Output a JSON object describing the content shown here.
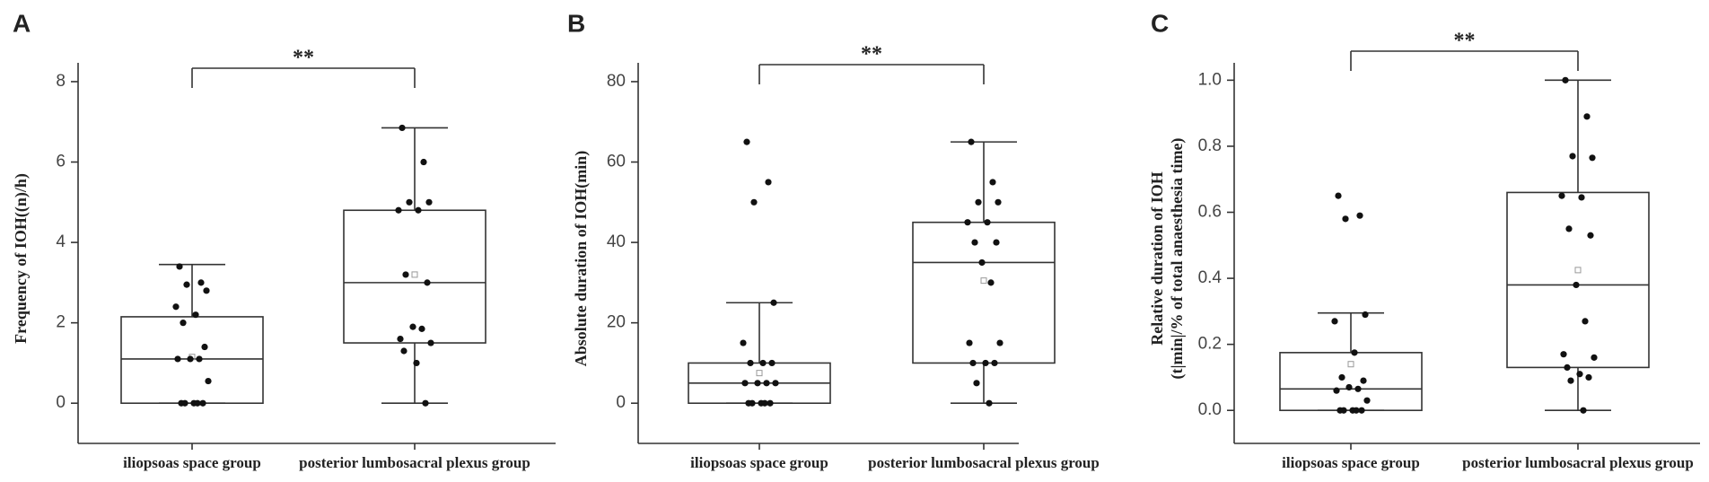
{
  "chart_data": [
    {
      "type": "box",
      "panel_label": "A",
      "ylabel": [
        "Frequency of IOH((n)/h)"
      ],
      "significance": "**",
      "categories": [
        "iliopsoas space group",
        "posterior lumbosacral plexus group"
      ],
      "ylim": [
        -1,
        8.2
      ],
      "yticks": [
        0,
        2,
        4,
        6,
        8
      ],
      "boxes": [
        {
          "min": 0,
          "q1": 0,
          "median": 1.1,
          "q3": 2.15,
          "max": 3.45,
          "mean": 1.15,
          "points": [
            3.4,
            3.0,
            2.95,
            2.8,
            2.4,
            2.2,
            2.0,
            1.4,
            1.1,
            1.1,
            1.1,
            0.55,
            0,
            0,
            0,
            0,
            0
          ]
        },
        {
          "min": 0,
          "q1": 1.5,
          "median": 3.0,
          "q3": 4.8,
          "max": 6.85,
          "mean": 3.2,
          "points": [
            6.85,
            6.0,
            5.0,
            5.0,
            4.8,
            4.8,
            3.2,
            3.0,
            1.9,
            1.85,
            1.6,
            1.5,
            1.3,
            1.0,
            0
          ]
        }
      ]
    },
    {
      "type": "box",
      "panel_label": "B",
      "ylabel": [
        "Absolute duration of IOH(min)"
      ],
      "significance": "**",
      "categories": [
        "iliopsoas space group",
        "posterior lumbosacral plexus group"
      ],
      "ylim": [
        -10,
        82
      ],
      "yticks": [
        0,
        20,
        40,
        60,
        80
      ],
      "boxes": [
        {
          "min": 0,
          "q1": 0,
          "median": 5,
          "q3": 10,
          "max": 25,
          "mean": 7.5,
          "points": [
            65,
            55,
            50,
            25,
            15,
            10,
            10,
            10,
            5,
            5,
            5,
            5,
            0,
            0,
            0,
            0,
            0
          ]
        },
        {
          "min": 0,
          "q1": 10,
          "median": 35,
          "q3": 45,
          "max": 65,
          "mean": 30.5,
          "points": [
            65,
            55,
            50,
            50,
            45,
            45,
            40,
            40,
            35,
            30,
            15,
            15,
            10,
            10,
            10,
            5,
            0
          ]
        }
      ]
    },
    {
      "type": "box",
      "panel_label": "C",
      "ylabel": [
        "Relative duration of IOH",
        "(t|min|/% of total anaesthesia time)"
      ],
      "significance": "**",
      "categories": [
        "iliopsoas space group",
        "posterior lumbosacral plexus group"
      ],
      "ylim": [
        -0.1,
        1.02
      ],
      "yticks": [
        {
          "value": 0,
          "label": "0.0"
        },
        0.2,
        0.4,
        0.6,
        0.8,
        {
          "value": 1,
          "label": "1.0"
        }
      ],
      "boxes": [
        {
          "min": 0,
          "q1": 0,
          "median": 0.065,
          "q3": 0.175,
          "max": 0.295,
          "mean": 0.14,
          "points": [
            0.65,
            0.59,
            0.58,
            0.29,
            0.27,
            0.175,
            0.1,
            0.09,
            0.07,
            0.065,
            0.06,
            0.03,
            0,
            0,
            0,
            0,
            0
          ]
        },
        {
          "min": 0,
          "q1": 0.13,
          "median": 0.38,
          "q3": 0.66,
          "max": 1.0,
          "mean": 0.425,
          "points": [
            1.0,
            0.89,
            0.77,
            0.765,
            0.65,
            0.645,
            0.55,
            0.53,
            0.38,
            0.27,
            0.17,
            0.16,
            0.13,
            0.11,
            0.1,
            0.09,
            0
          ]
        }
      ]
    }
  ]
}
